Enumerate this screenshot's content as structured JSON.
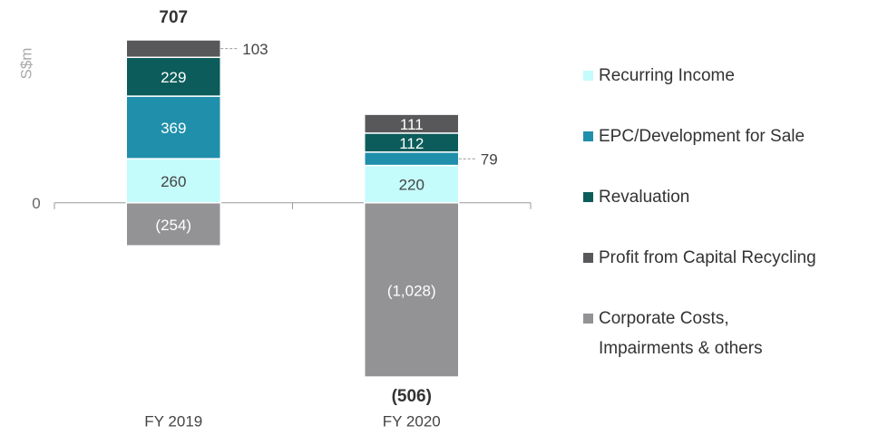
{
  "chart_data": {
    "type": "stacked_bar",
    "y_label": "S$m",
    "categories": [
      "FY 2019",
      "FY 2020"
    ],
    "series": [
      {
        "name": "Recurring Income",
        "color": "#c4fbfb",
        "values": [
          260,
          220
        ]
      },
      {
        "name": "EPC/Development for Sale",
        "color": "#1f8fab",
        "values": [
          369,
          79
        ]
      },
      {
        "name": "Revaluation",
        "color": "#0b5c5a",
        "values": [
          229,
          112
        ]
      },
      {
        "name": "Profit from Capital Recycling",
        "color": "#58585a",
        "values": [
          103,
          111
        ]
      },
      {
        "name": "Corporate Costs, Impairments & others",
        "color": "#939396",
        "values": [
          -254,
          -1028
        ],
        "value_labels": [
          "(254)",
          "(1,028)"
        ]
      }
    ],
    "totals": [
      707,
      -506
    ],
    "total_labels": [
      "707",
      "(506)"
    ],
    "ylim": [
      -1100,
      1100
    ],
    "yticks": [
      0
    ]
  }
}
